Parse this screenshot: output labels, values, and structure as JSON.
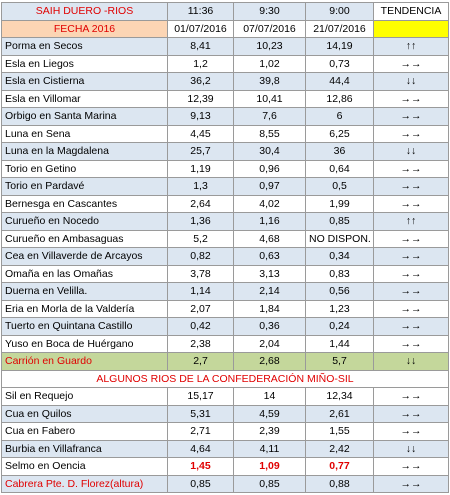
{
  "header": {
    "title": "SAIH DUERO -RIOS",
    "times": [
      "11:36",
      "9:30",
      "9:00"
    ],
    "trend_label": "TENDENCIA"
  },
  "date_row": {
    "label": "FECHA 2016",
    "dates": [
      "01/07/2016",
      "07/07/2016",
      "21/07/2016"
    ]
  },
  "duero_rows": [
    {
      "name": "Porma en Secos",
      "values": [
        "8,41",
        "10,23",
        "14,19"
      ],
      "trend": "↑↑"
    },
    {
      "name": "Esla en Liegos",
      "values": [
        "1,2",
        "1,02",
        "0,73"
      ],
      "trend": "→→"
    },
    {
      "name": "Esla en Cistierna",
      "values": [
        "36,2",
        "39,8",
        "44,4"
      ],
      "trend": "↓↓"
    },
    {
      "name": "Esla en Villomar",
      "values": [
        "12,39",
        "10,41",
        "12,86"
      ],
      "trend": "→→"
    },
    {
      "name": "Orbigo en Santa Marina",
      "values": [
        "9,13",
        "7,6",
        "6"
      ],
      "trend": "→→"
    },
    {
      "name": "Luna en Sena",
      "values": [
        "4,45",
        "8,55",
        "6,25"
      ],
      "trend": "→→"
    },
    {
      "name": "Luna en la Magdalena",
      "values": [
        "25,7",
        "30,4",
        "36"
      ],
      "trend": "↓↓"
    },
    {
      "name": "Torio en Getino",
      "values": [
        "1,19",
        "0,96",
        "0,64"
      ],
      "trend": "→→"
    },
    {
      "name": "Torio en Pardavé",
      "values": [
        "1,3",
        "0,97",
        "0,5"
      ],
      "trend": "→→"
    },
    {
      "name": "Bernesga en Cascantes",
      "values": [
        "2,64",
        "4,02",
        "1,99"
      ],
      "trend": "→→"
    },
    {
      "name": "Curueño en Nocedo",
      "values": [
        "1,36",
        "1,16",
        "0,85"
      ],
      "trend": "↑↑"
    },
    {
      "name": "Curueño en Ambasaguas",
      "values": [
        "5,2",
        "4,68",
        "NO DISPON."
      ],
      "trend": "→→"
    },
    {
      "name": "Cea en Villaverde de Arcayos",
      "values": [
        "0,82",
        "0,63",
        "0,34"
      ],
      "trend": "→→"
    },
    {
      "name": "Omaña en las Omañas",
      "values": [
        "3,78",
        "3,13",
        "0,83"
      ],
      "trend": "→→"
    },
    {
      "name": "Duerna en Velilla.",
      "values": [
        "1,14",
        "2,14",
        "0,56"
      ],
      "trend": "→→"
    },
    {
      "name": "Eria en Morla de la Valdería",
      "values": [
        "2,07",
        "1,84",
        "1,23"
      ],
      "trend": "→→"
    },
    {
      "name": "Tuerto en Quintana Castillo",
      "values": [
        "0,42",
        "0,36",
        "0,24"
      ],
      "trend": "→→"
    },
    {
      "name": "Yuso en Boca de Huérgano",
      "values": [
        "2,38",
        "2,04",
        "1,44"
      ],
      "trend": "→→"
    },
    {
      "name": "Carrión en Guardo",
      "values": [
        "2,7",
        "2,68",
        "5,7"
      ],
      "trend": "↓↓"
    }
  ],
  "section_title": "ALGUNOS RIOS DE LA CONFEDERACIÓN MIÑO-SIL",
  "minosil_rows": [
    {
      "name": "Sil en Requejo",
      "values": [
        "15,17",
        "14",
        "12,34"
      ],
      "trend": "→→"
    },
    {
      "name": "Cua en Quilos",
      "values": [
        "5,31",
        "4,59",
        "2,61"
      ],
      "trend": "→→"
    },
    {
      "name": "Cua en Fabero",
      "values": [
        "2,71",
        "2,39",
        "1,55"
      ],
      "trend": "→→"
    },
    {
      "name": "Burbia en Villafranca",
      "values": [
        "4,64",
        "4,11",
        "2,42"
      ],
      "trend": "↓↓"
    },
    {
      "name": "Selmo en Oencia",
      "values": [
        "1,45",
        "1,09",
        "0,77"
      ],
      "trend": "→→"
    },
    {
      "name": "Cabrera Pte. D. Florez(altura)",
      "values": [
        "0,85",
        "0,85",
        "0,88"
      ],
      "trend": "→→"
    }
  ]
}
